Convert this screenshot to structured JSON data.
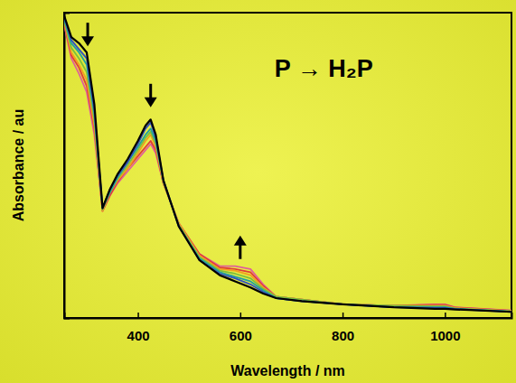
{
  "chart_data": {
    "type": "line",
    "x_label": "Wavelength / nm",
    "y_label": "Absorbance / au",
    "annotations": [
      {
        "text": "P → H₂P"
      }
    ],
    "arrows": [
      {
        "x": 302,
        "y": 0.89,
        "direction": "down"
      },
      {
        "x": 425,
        "y": 0.69,
        "direction": "down"
      },
      {
        "x": 600,
        "y": 0.27,
        "direction": "up"
      }
    ],
    "x": [
      256,
      270,
      285,
      300,
      315,
      331,
      345,
      360,
      380,
      400,
      415,
      425,
      435,
      450,
      480,
      520,
      560,
      590,
      620,
      645,
      670,
      720,
      800,
      900,
      980,
      1000,
      1020,
      1130
    ],
    "series": [
      {
        "color": "#e0609a",
        "values": [
          0.96,
          0.85,
          0.8,
          0.74,
          0.6,
          0.35,
          0.4,
          0.44,
          0.48,
          0.52,
          0.55,
          0.57,
          0.54,
          0.44,
          0.31,
          0.21,
          0.17,
          0.17,
          0.16,
          0.11,
          0.07,
          0.06,
          0.045,
          0.04,
          0.045,
          0.045,
          0.035,
          0.025
        ]
      },
      {
        "color": "#e03a3a",
        "values": [
          0.965,
          0.86,
          0.82,
          0.76,
          0.62,
          0.35,
          0.4,
          0.445,
          0.49,
          0.53,
          0.56,
          0.58,
          0.55,
          0.44,
          0.31,
          0.21,
          0.165,
          0.16,
          0.15,
          0.105,
          0.07,
          0.06,
          0.045,
          0.04,
          0.043,
          0.043,
          0.034,
          0.024
        ]
      },
      {
        "color": "#f0a020",
        "values": [
          0.97,
          0.87,
          0.83,
          0.78,
          0.63,
          0.35,
          0.41,
          0.45,
          0.49,
          0.54,
          0.58,
          0.6,
          0.56,
          0.44,
          0.31,
          0.205,
          0.16,
          0.155,
          0.14,
          0.1,
          0.07,
          0.06,
          0.045,
          0.04,
          0.04,
          0.04,
          0.033,
          0.023
        ]
      },
      {
        "color": "#7cbf3c",
        "values": [
          0.975,
          0.885,
          0.85,
          0.805,
          0.65,
          0.355,
          0.41,
          0.455,
          0.5,
          0.55,
          0.59,
          0.61,
          0.57,
          0.445,
          0.305,
          0.2,
          0.155,
          0.145,
          0.13,
          0.095,
          0.07,
          0.06,
          0.045,
          0.04,
          0.038,
          0.038,
          0.031,
          0.022
        ]
      },
      {
        "color": "#20a0a0",
        "values": [
          0.98,
          0.9,
          0.87,
          0.83,
          0.67,
          0.36,
          0.41,
          0.46,
          0.51,
          0.56,
          0.6,
          0.62,
          0.58,
          0.45,
          0.3,
          0.195,
          0.15,
          0.135,
          0.12,
          0.09,
          0.065,
          0.055,
          0.045,
          0.035,
          0.035,
          0.035,
          0.03,
          0.021
        ]
      },
      {
        "color": "#3050c0",
        "values": [
          0.985,
          0.91,
          0.88,
          0.85,
          0.68,
          0.36,
          0.42,
          0.465,
          0.51,
          0.57,
          0.62,
          0.64,
          0.59,
          0.45,
          0.3,
          0.19,
          0.145,
          0.13,
          0.11,
          0.085,
          0.065,
          0.055,
          0.045,
          0.035,
          0.033,
          0.033,
          0.029,
          0.02
        ]
      },
      {
        "color": "#000000",
        "values": [
          0.99,
          0.92,
          0.9,
          0.87,
          0.7,
          0.36,
          0.42,
          0.47,
          0.52,
          0.58,
          0.63,
          0.65,
          0.6,
          0.45,
          0.3,
          0.19,
          0.14,
          0.12,
          0.1,
          0.08,
          0.065,
          0.055,
          0.045,
          0.035,
          0.03,
          0.03,
          0.028,
          0.02
        ]
      }
    ],
    "xlim": [
      256,
      1130
    ],
    "ylim": [
      0,
      1
    ],
    "xticks": [
      400,
      600,
      800,
      1000
    ],
    "yticks": [],
    "tick_labels": "x",
    "grid": false
  }
}
